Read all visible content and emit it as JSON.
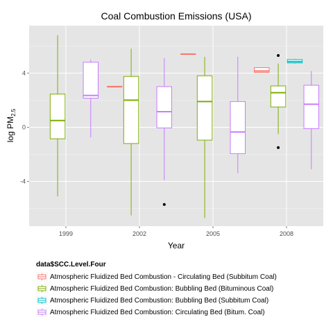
{
  "chart_data": {
    "type": "boxplot",
    "title": "Coal Combustion Emissions (USA)",
    "xlabel": "Year",
    "ylabel_main": "log PM",
    "ylabel_sub": "2.5",
    "categories": [
      "1999",
      "2002",
      "2005",
      "2008"
    ],
    "yticks": [
      -4,
      0,
      4
    ],
    "ylim": [
      -7.3,
      7.5
    ],
    "legend": {
      "title": "data$SCC.Level.Four",
      "position": "bottom-left"
    },
    "series": [
      {
        "name": "Atmospheric Fluidized Bed Combustion - Circulating Bed (Subbitum Coal)",
        "color": "#F8766D",
        "boxes": [
          {
            "category": "2002",
            "min": 3.0,
            "q1": 3.0,
            "median": 3.0,
            "q3": 3.0,
            "max": 3.0,
            "outliers": []
          },
          {
            "category": "2005",
            "min": 5.4,
            "q1": 5.4,
            "median": 5.4,
            "q3": 5.4,
            "max": 5.4,
            "outliers": []
          },
          {
            "category": "2008",
            "min": 4.05,
            "q1": 4.05,
            "median": 4.15,
            "q3": 4.4,
            "max": 4.4,
            "outliers": []
          }
        ]
      },
      {
        "name": "Atmospheric Fluidized Bed Combustion: Bubbling Bed (Bituminous Coal)",
        "color": "#7CAE00",
        "boxes": [
          {
            "category": "1999",
            "min": -5.1,
            "q1": -0.85,
            "median": 0.5,
            "q3": 2.45,
            "max": 6.8,
            "outliers": []
          },
          {
            "category": "2002",
            "min": -6.5,
            "q1": -1.2,
            "median": 2.0,
            "q3": 3.75,
            "max": 5.8,
            "outliers": []
          },
          {
            "category": "2005",
            "min": -6.7,
            "q1": -0.95,
            "median": 1.9,
            "q3": 3.8,
            "max": 5.2,
            "outliers": []
          },
          {
            "category": "2008",
            "min": -0.5,
            "q1": 1.5,
            "median": 2.55,
            "q3": 3.05,
            "max": 4.7,
            "outliers": [
              5.3,
              -1.5
            ]
          }
        ]
      },
      {
        "name": "Atmospheric Fluidized Bed Combustion: Bubbling Bed (Subbitum Coal)",
        "color": "#00BFC4",
        "boxes": [
          {
            "category": "2008",
            "min": 4.7,
            "q1": 4.75,
            "median": 4.85,
            "q3": 5.0,
            "max": 5.05,
            "outliers": []
          }
        ]
      },
      {
        "name": "Atmospheric Fluidized Bed Combustion: Circulating Bed (Bitum. Coal)",
        "color": "#C77CFF",
        "boxes": [
          {
            "category": "1999",
            "min": -0.75,
            "q1": 2.15,
            "median": 2.35,
            "q3": 4.8,
            "max": 5.0,
            "outliers": []
          },
          {
            "category": "2002",
            "min": -3.9,
            "q1": -0.05,
            "median": 1.15,
            "q3": 3.0,
            "max": 5.1,
            "outliers": [
              -5.7
            ]
          },
          {
            "category": "2005",
            "min": -3.4,
            "q1": -1.95,
            "median": -0.35,
            "q3": 1.9,
            "max": 5.2,
            "outliers": []
          },
          {
            "category": "2008",
            "min": -3.1,
            "q1": -0.1,
            "median": 1.7,
            "q3": 3.1,
            "max": 4.15,
            "outliers": []
          }
        ]
      }
    ],
    "grid": true,
    "panel_background": "#E5E5E5",
    "grid_color": "#FFFFFF"
  }
}
